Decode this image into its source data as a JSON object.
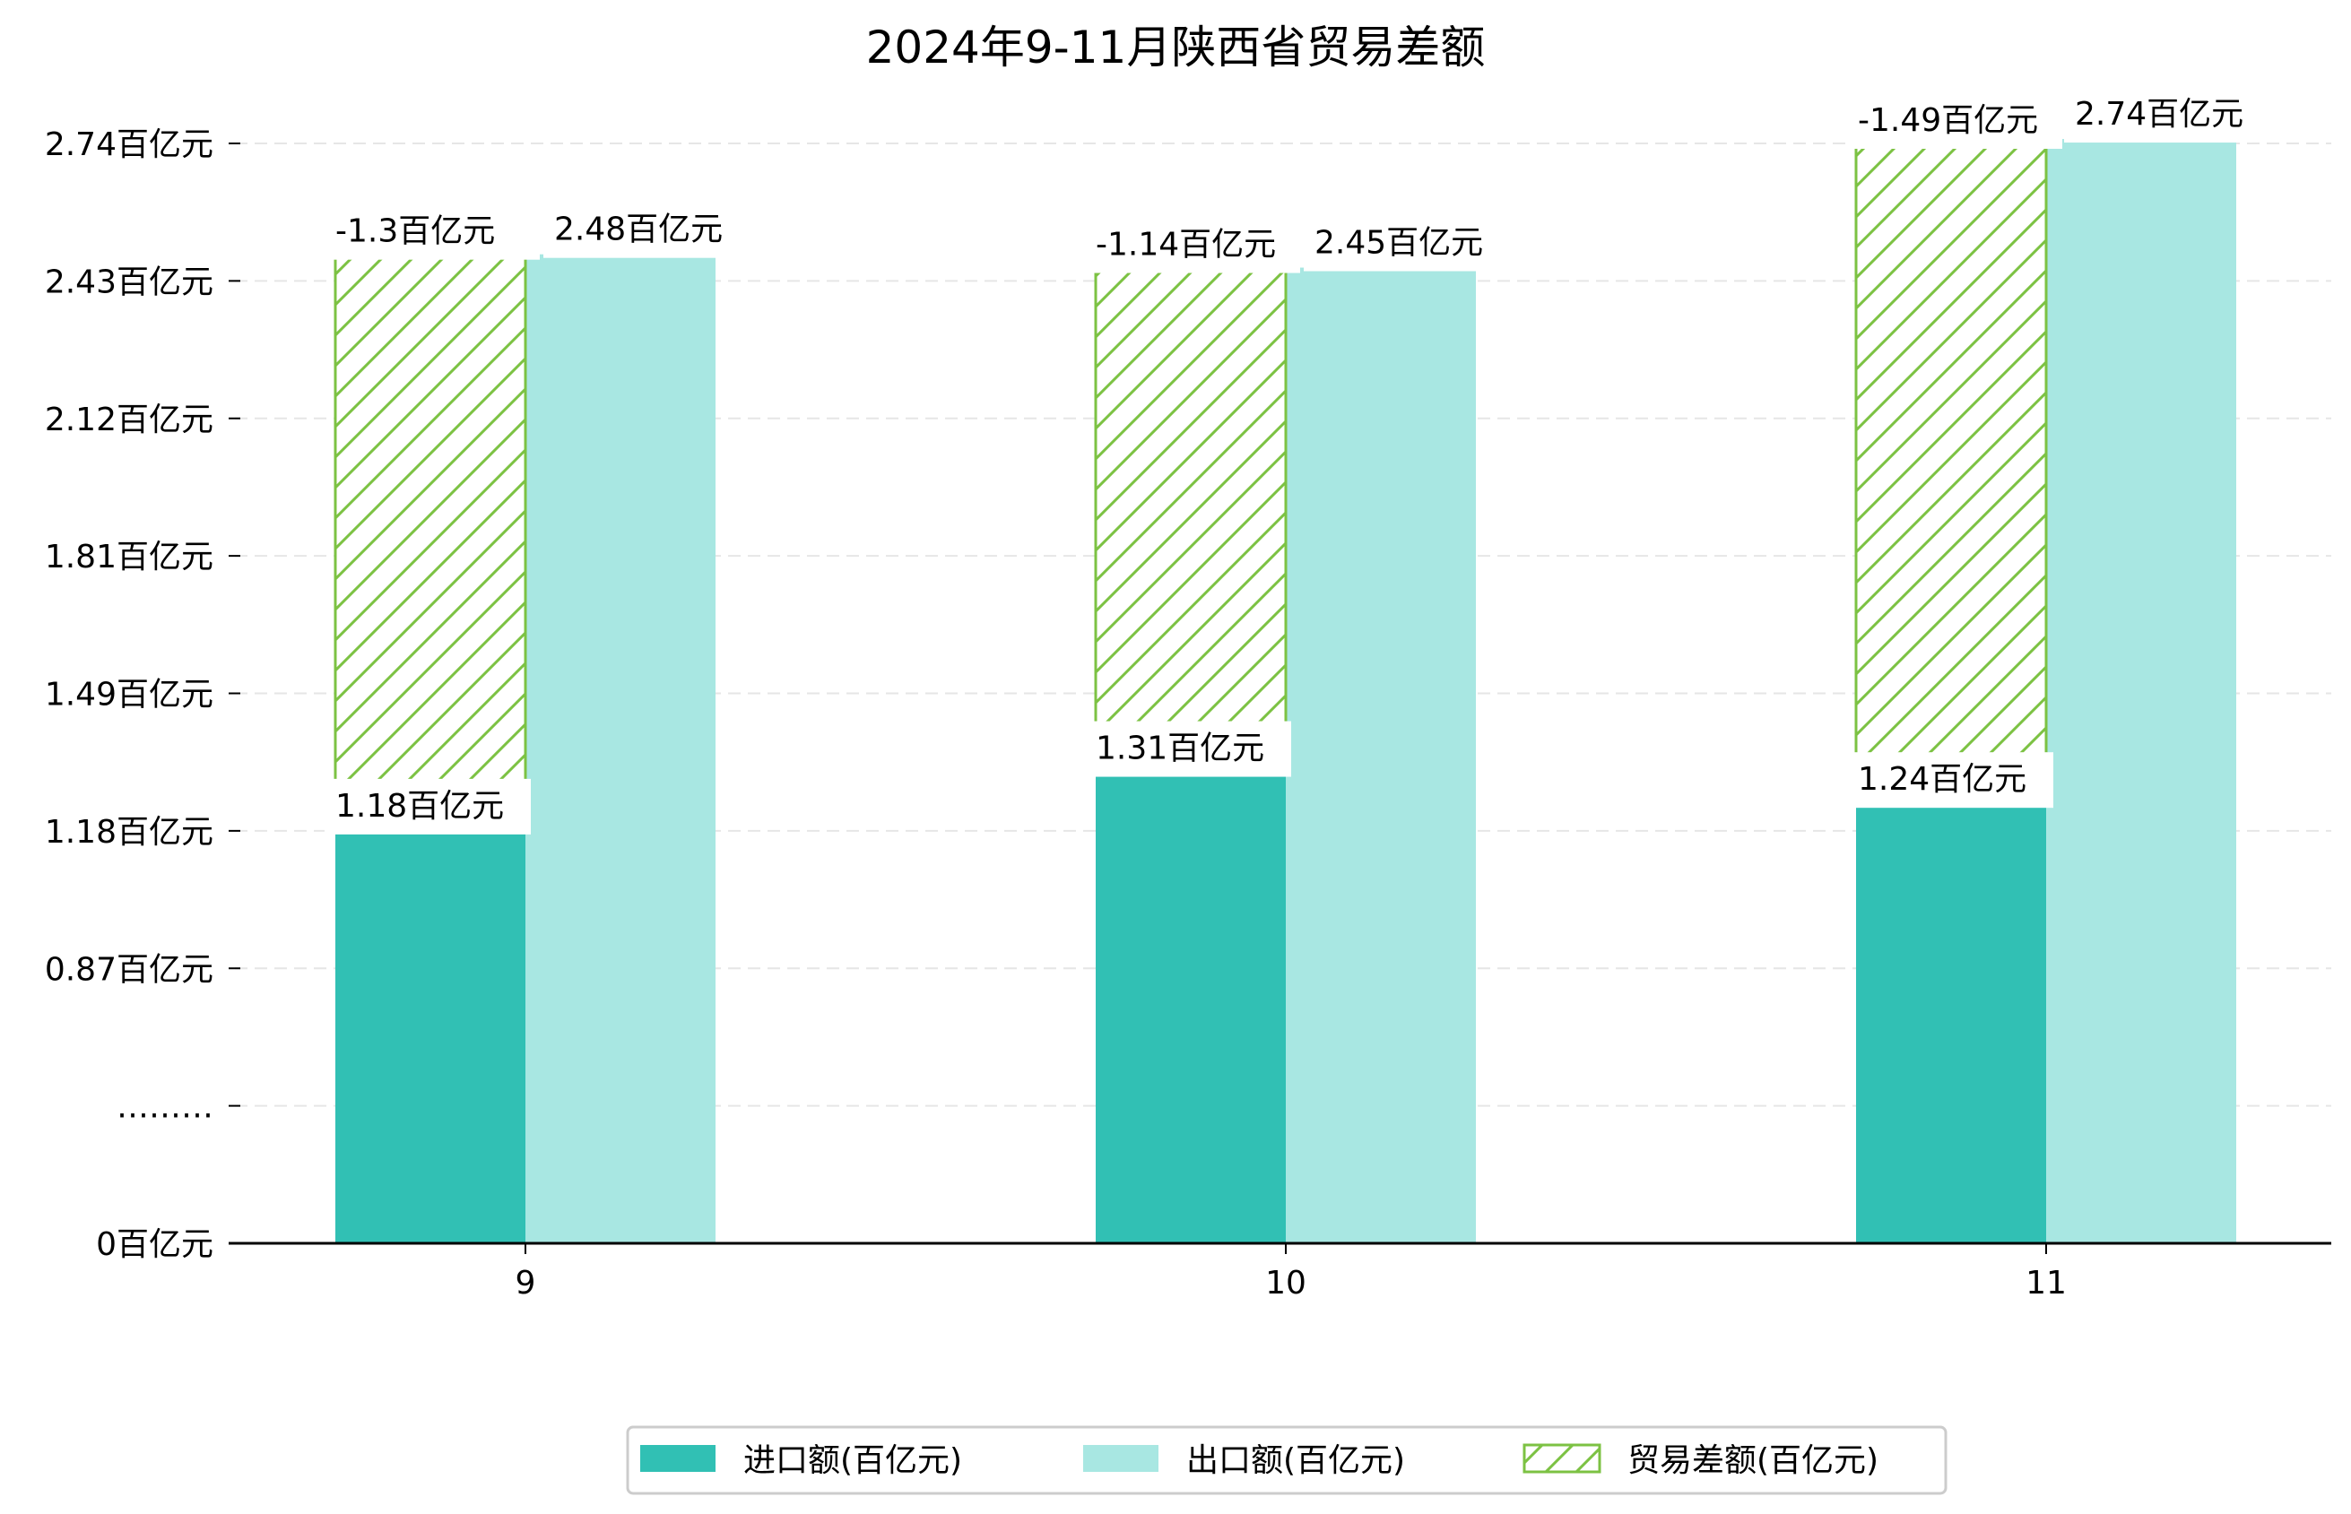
{
  "chart_data": {
    "type": "bar",
    "title": "2024年9-11月陕西省贸易差额",
    "xlabel": "",
    "ylabel": "",
    "categories": [
      "9",
      "10",
      "11"
    ],
    "series": [
      {
        "name": "进口额(百亿元)",
        "values": [
          1.18,
          1.31,
          1.24
        ],
        "labels": [
          "1.18百亿元",
          "1.31百亿元",
          "1.24百亿元"
        ],
        "color": "#31c0b4"
      },
      {
        "name": "出口额(百亿元)",
        "values": [
          2.48,
          2.45,
          2.74
        ],
        "labels": [
          "2.48百亿元",
          "2.45百亿元",
          "2.74百亿元"
        ],
        "color": "#a8e7e2"
      },
      {
        "name": "贸易差额(百亿元)",
        "values": [
          -1.3,
          -1.14,
          -1.49
        ],
        "labels": [
          "-1.3百亿元",
          "-1.14百亿元",
          "-1.49百亿元"
        ],
        "color": "#7cc243",
        "pattern": "hatch"
      }
    ],
    "y_ticks": [
      {
        "value": 0,
        "label": "0百亿元"
      },
      {
        "value": 0.31,
        "label": "………"
      },
      {
        "value": 0.62,
        "label": "0.87百亿元"
      },
      {
        "value": 0.93,
        "label": "1.18百亿元"
      },
      {
        "value": 1.24,
        "label": "1.49百亿元"
      },
      {
        "value": 1.55,
        "label": "1.81百亿元"
      },
      {
        "value": 1.86,
        "label": "2.12百亿元"
      },
      {
        "value": 2.17,
        "label": "2.43百亿元"
      },
      {
        "value": 2.48,
        "label": "2.74百亿元"
      }
    ],
    "axis_break": "broken y-axis: values below 0.87 compressed",
    "ylim": [
      0,
      2.6
    ],
    "grid": true,
    "legend_position": "bottom-center"
  }
}
